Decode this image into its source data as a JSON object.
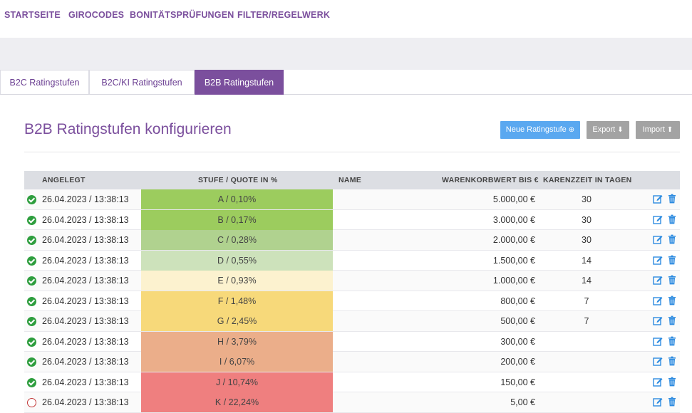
{
  "nav": {
    "items": [
      "STARTSEITE",
      "GIROCODES",
      "BONITÄTSPRÜFUNGEN",
      "FILTER/REGELWERK"
    ]
  },
  "tabs": [
    {
      "label": "B2C Ratingstufen",
      "active": false
    },
    {
      "label": "B2C/KI Ratingstufen",
      "active": false
    },
    {
      "label": "B2B Ratingstufen",
      "active": true
    }
  ],
  "page": {
    "title": "B2B Ratingstufen konfigurieren",
    "buttons": {
      "new": "Neue Ratingstufe",
      "export": "Export",
      "import": "Import"
    }
  },
  "table": {
    "headers": {
      "created": "ANGELEGT",
      "level": "STUFE / QUOTE IN %",
      "name": "NAME",
      "basket": "WARENKORBWERT BIS €",
      "grace": "KARENZZEIT IN TAGEN"
    },
    "rows": [
      {
        "status": "ok",
        "date": "26.04.2023 / 13:38:13",
        "stufe": "A / 0,10%",
        "color": "#9ccc5e",
        "name": "",
        "warenkorb": "5.000,00 €",
        "karenz": "30"
      },
      {
        "status": "ok",
        "date": "26.04.2023 / 13:38:13",
        "stufe": "B / 0,17%",
        "color": "#9ccc5e",
        "name": "",
        "warenkorb": "3.000,00 €",
        "karenz": "30"
      },
      {
        "status": "ok",
        "date": "26.04.2023 / 13:38:13",
        "stufe": "C / 0,28%",
        "color": "#b0d28f",
        "name": "",
        "warenkorb": "2.000,00 €",
        "karenz": "30"
      },
      {
        "status": "ok",
        "date": "26.04.2023 / 13:38:13",
        "stufe": "D / 0,55%",
        "color": "#cde2bb",
        "name": "",
        "warenkorb": "1.500,00 €",
        "karenz": "14"
      },
      {
        "status": "ok",
        "date": "26.04.2023 / 13:38:13",
        "stufe": "E / 0,93%",
        "color": "#fcf2cf",
        "name": "",
        "warenkorb": "1.000,00 €",
        "karenz": "14"
      },
      {
        "status": "ok",
        "date": "26.04.2023 / 13:38:13",
        "stufe": "F / 1,48%",
        "color": "#f7d97a",
        "name": "",
        "warenkorb": "800,00 €",
        "karenz": "7"
      },
      {
        "status": "ok",
        "date": "26.04.2023 / 13:38:13",
        "stufe": "G / 2,45%",
        "color": "#f7d97a",
        "name": "",
        "warenkorb": "500,00 €",
        "karenz": "7"
      },
      {
        "status": "ok",
        "date": "26.04.2023 / 13:38:13",
        "stufe": "H / 3,79%",
        "color": "#ebae8a",
        "name": "",
        "warenkorb": "300,00 €",
        "karenz": ""
      },
      {
        "status": "ok",
        "date": "26.04.2023 / 13:38:13",
        "stufe": "I / 6,07%",
        "color": "#ebae8a",
        "name": "",
        "warenkorb": "200,00 €",
        "karenz": ""
      },
      {
        "status": "ok",
        "date": "26.04.2023 / 13:38:13",
        "stufe": "J / 10,74%",
        "color": "#ef7f7f",
        "name": "",
        "warenkorb": "150,00 €",
        "karenz": ""
      },
      {
        "status": "inactive",
        "date": "26.04.2023 / 13:38:13",
        "stufe": "K / 22,24%",
        "color": "#ef7f7f",
        "name": "",
        "warenkorb": "5,00 €",
        "karenz": ""
      }
    ]
  },
  "colors": {
    "brand": "#7b4f9d",
    "primary_button": "#5aa8f0",
    "secondary_button": "#a3a3a3",
    "status_active": "#2e9e3e",
    "status_inactive": "#c23a3a",
    "action_icon": "#2d8be0"
  },
  "icons": {
    "new": "plus-circle-icon",
    "export": "download-icon",
    "import": "upload-icon",
    "edit": "edit-icon",
    "delete": "trash-icon"
  }
}
